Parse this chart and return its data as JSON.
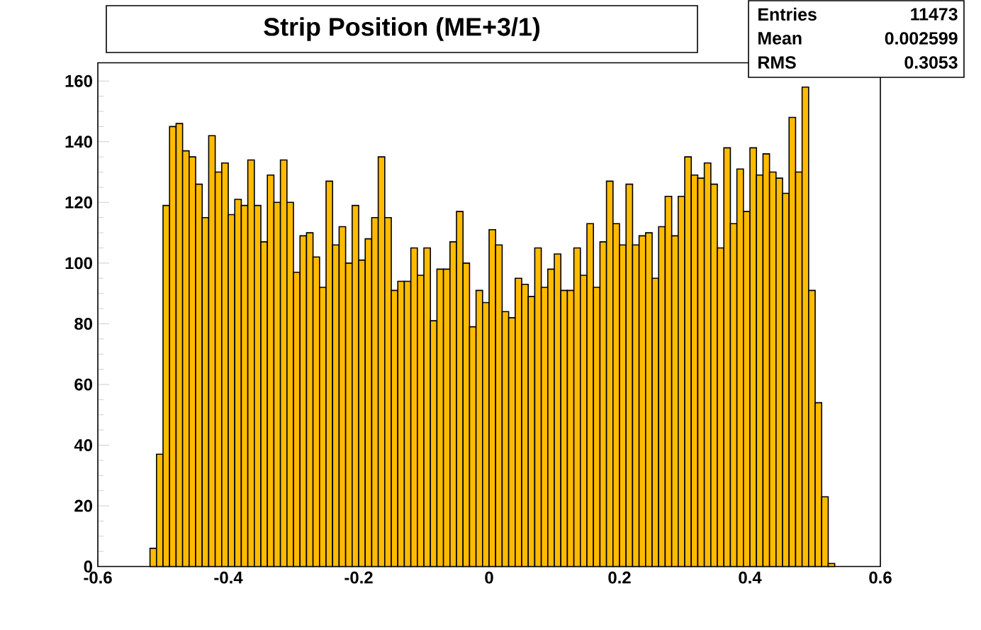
{
  "chart_data": {
    "type": "histogram",
    "title": "Strip Position (ME+3/1)",
    "bins": [
      -0.52,
      -0.51,
      -0.5,
      -0.49,
      -0.48,
      -0.47,
      -0.46,
      -0.45,
      -0.44,
      -0.43,
      -0.42,
      -0.41,
      -0.4,
      -0.39,
      -0.38,
      -0.37,
      -0.36,
      -0.35,
      -0.34,
      -0.33,
      -0.32,
      -0.31,
      -0.3,
      -0.29,
      -0.28,
      -0.27,
      -0.26,
      -0.25,
      -0.24,
      -0.23,
      -0.22,
      -0.21,
      -0.2,
      -0.19,
      -0.18,
      -0.17,
      -0.16,
      -0.15,
      -0.14,
      -0.13,
      -0.12,
      -0.11,
      -0.1,
      -0.09,
      -0.08,
      -0.07,
      -0.06,
      -0.05,
      -0.04,
      -0.03,
      -0.02,
      -0.01,
      0.0,
      0.01,
      0.02,
      0.03,
      0.04,
      0.05,
      0.06,
      0.07,
      0.08,
      0.09,
      0.1,
      0.11,
      0.12,
      0.13,
      0.14,
      0.15,
      0.16,
      0.17,
      0.18,
      0.19,
      0.2,
      0.21,
      0.22,
      0.23,
      0.24,
      0.25,
      0.26,
      0.27,
      0.28,
      0.29,
      0.3,
      0.31,
      0.32,
      0.33,
      0.34,
      0.35,
      0.36,
      0.37,
      0.38,
      0.39,
      0.4,
      0.41,
      0.42,
      0.43,
      0.44,
      0.45,
      0.46,
      0.47,
      0.48,
      0.49,
      0.5,
      0.51,
      0.52,
      0.53
    ],
    "values": [
      6,
      37,
      119,
      145,
      146,
      137,
      135,
      126,
      115,
      142,
      130,
      133,
      116,
      121,
      119,
      134,
      119,
      107,
      129,
      120,
      134,
      120,
      97,
      109,
      110,
      102,
      92,
      127,
      106,
      112,
      100,
      119,
      101,
      108,
      115,
      135,
      115,
      91,
      94,
      94,
      105,
      96,
      105,
      81,
      98,
      98,
      107,
      117,
      100,
      79,
      91,
      87,
      111,
      106,
      84,
      82,
      95,
      93,
      89,
      105,
      92,
      98,
      103,
      91,
      91,
      105,
      96,
      113,
      92,
      107,
      127,
      113,
      106,
      126,
      106,
      109,
      110,
      95,
      112,
      122,
      109,
      122,
      135,
      129,
      128,
      133,
      126,
      105,
      138,
      113,
      131,
      117,
      138,
      129,
      136,
      130,
      128,
      123,
      148,
      130,
      158,
      91,
      54,
      23,
      1
    ],
    "color": "#ffbb00",
    "xlim": [
      -0.6,
      0.6
    ],
    "xticks": [
      -0.6,
      -0.4,
      -0.2,
      0,
      0.2,
      0.4,
      0.6
    ],
    "ylim": [
      0,
      166
    ],
    "yticks": [
      0,
      20,
      40,
      60,
      80,
      100,
      120,
      140,
      160
    ],
    "grid": false,
    "annotations": [
      "Entries",
      "11473",
      "Mean",
      "0.002599",
      "RMS",
      "0.3053"
    ]
  }
}
